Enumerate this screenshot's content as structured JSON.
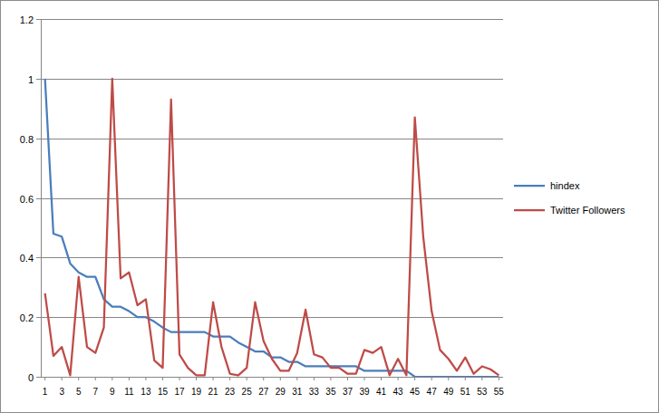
{
  "chart_data": {
    "type": "line",
    "x": [
      1,
      2,
      3,
      4,
      5,
      6,
      7,
      8,
      9,
      10,
      11,
      12,
      13,
      14,
      15,
      16,
      17,
      18,
      19,
      20,
      21,
      22,
      23,
      24,
      25,
      26,
      27,
      28,
      29,
      30,
      31,
      32,
      33,
      34,
      35,
      36,
      37,
      38,
      39,
      40,
      41,
      42,
      43,
      44,
      45,
      46,
      47,
      48,
      49,
      50,
      51,
      52,
      53,
      54,
      55
    ],
    "xlim": [
      0.5,
      55.5
    ],
    "xticks": [
      1,
      3,
      5,
      7,
      9,
      11,
      13,
      15,
      17,
      19,
      21,
      23,
      25,
      27,
      29,
      31,
      33,
      35,
      37,
      39,
      41,
      43,
      45,
      47,
      49,
      51,
      53,
      55
    ],
    "ylim": [
      0,
      1.2
    ],
    "yticks": [
      0,
      0.2,
      0.4,
      0.6,
      0.8,
      1,
      1.2
    ],
    "grid": true,
    "legend": "right",
    "series": [
      {
        "name": "hindex",
        "color": "#4a7ebb",
        "values": [
          1.0,
          0.48,
          0.47,
          0.38,
          0.35,
          0.335,
          0.335,
          0.26,
          0.235,
          0.235,
          0.22,
          0.2,
          0.2,
          0.185,
          0.165,
          0.15,
          0.15,
          0.15,
          0.15,
          0.15,
          0.135,
          0.135,
          0.135,
          0.115,
          0.1,
          0.085,
          0.085,
          0.065,
          0.065,
          0.05,
          0.05,
          0.035,
          0.035,
          0.035,
          0.035,
          0.035,
          0.035,
          0.035,
          0.02,
          0.02,
          0.02,
          0.02,
          0.02,
          0.02,
          0,
          0,
          0,
          0,
          0,
          0,
          0,
          0,
          0,
          0,
          0
        ]
      },
      {
        "name": "Twitter Followers",
        "color": "#be4b48",
        "values": [
          0.28,
          0.07,
          0.1,
          0.005,
          0.335,
          0.1,
          0.08,
          0.165,
          1.0,
          0.33,
          0.35,
          0.24,
          0.26,
          0.055,
          0.03,
          0.93,
          0.075,
          0.03,
          0.005,
          0.005,
          0.25,
          0.1,
          0.01,
          0.005,
          0.03,
          0.25,
          0.12,
          0.06,
          0.02,
          0.02,
          0.08,
          0.225,
          0.075,
          0.065,
          0.03,
          0.03,
          0.01,
          0.01,
          0.09,
          0.08,
          0.1,
          0.005,
          0.06,
          0.005,
          0.87,
          0.47,
          0.22,
          0.09,
          0.06,
          0.02,
          0.065,
          0.01,
          0.035,
          0.025,
          0.005
        ]
      }
    ]
  }
}
